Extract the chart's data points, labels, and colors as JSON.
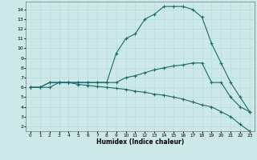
{
  "xlabel": "Humidex (Indice chaleur)",
  "bg_color": "#cce8e8",
  "line_color": "#1a6b6b",
  "grid_color": "#b0d8d8",
  "xlim": [
    -0.5,
    23.5
  ],
  "ylim": [
    1.5,
    14.8
  ],
  "xticks": [
    0,
    1,
    2,
    3,
    4,
    5,
    6,
    7,
    8,
    9,
    10,
    11,
    12,
    13,
    14,
    15,
    16,
    17,
    18,
    19,
    20,
    21,
    22,
    23
  ],
  "yticks": [
    2,
    3,
    4,
    5,
    6,
    7,
    8,
    9,
    10,
    11,
    12,
    13,
    14
  ],
  "line1_x": [
    0,
    1,
    2,
    3,
    4,
    5,
    6,
    7,
    8,
    9,
    10,
    11,
    12,
    13,
    14,
    15,
    16,
    17,
    18,
    19,
    20,
    21,
    22,
    23
  ],
  "line1_y": [
    6.0,
    6.0,
    6.5,
    6.5,
    6.5,
    6.5,
    6.5,
    6.5,
    6.5,
    9.5,
    11.0,
    11.5,
    13.0,
    13.5,
    14.3,
    14.3,
    14.3,
    14.0,
    13.2,
    10.5,
    8.5,
    6.5,
    5.0,
    3.5
  ],
  "line2_x": [
    0,
    1,
    2,
    3,
    4,
    5,
    6,
    7,
    8,
    9,
    10,
    11,
    12,
    13,
    14,
    15,
    16,
    17,
    18,
    19,
    20,
    21,
    22,
    23
  ],
  "line2_y": [
    6.0,
    6.0,
    6.5,
    6.5,
    6.5,
    6.5,
    6.5,
    6.5,
    6.5,
    6.5,
    7.0,
    7.2,
    7.5,
    7.8,
    8.0,
    8.2,
    8.3,
    8.5,
    8.5,
    6.5,
    6.5,
    5.0,
    4.0,
    3.5
  ],
  "line3_x": [
    0,
    1,
    2,
    3,
    4,
    5,
    6,
    7,
    8,
    9,
    10,
    11,
    12,
    13,
    14,
    15,
    16,
    17,
    18,
    19,
    20,
    21,
    22,
    23
  ],
  "line3_y": [
    6.0,
    6.0,
    6.0,
    6.5,
    6.5,
    6.3,
    6.2,
    6.1,
    6.0,
    5.9,
    5.8,
    5.6,
    5.5,
    5.3,
    5.2,
    5.0,
    4.8,
    4.5,
    4.2,
    4.0,
    3.5,
    3.0,
    2.2,
    1.5
  ]
}
